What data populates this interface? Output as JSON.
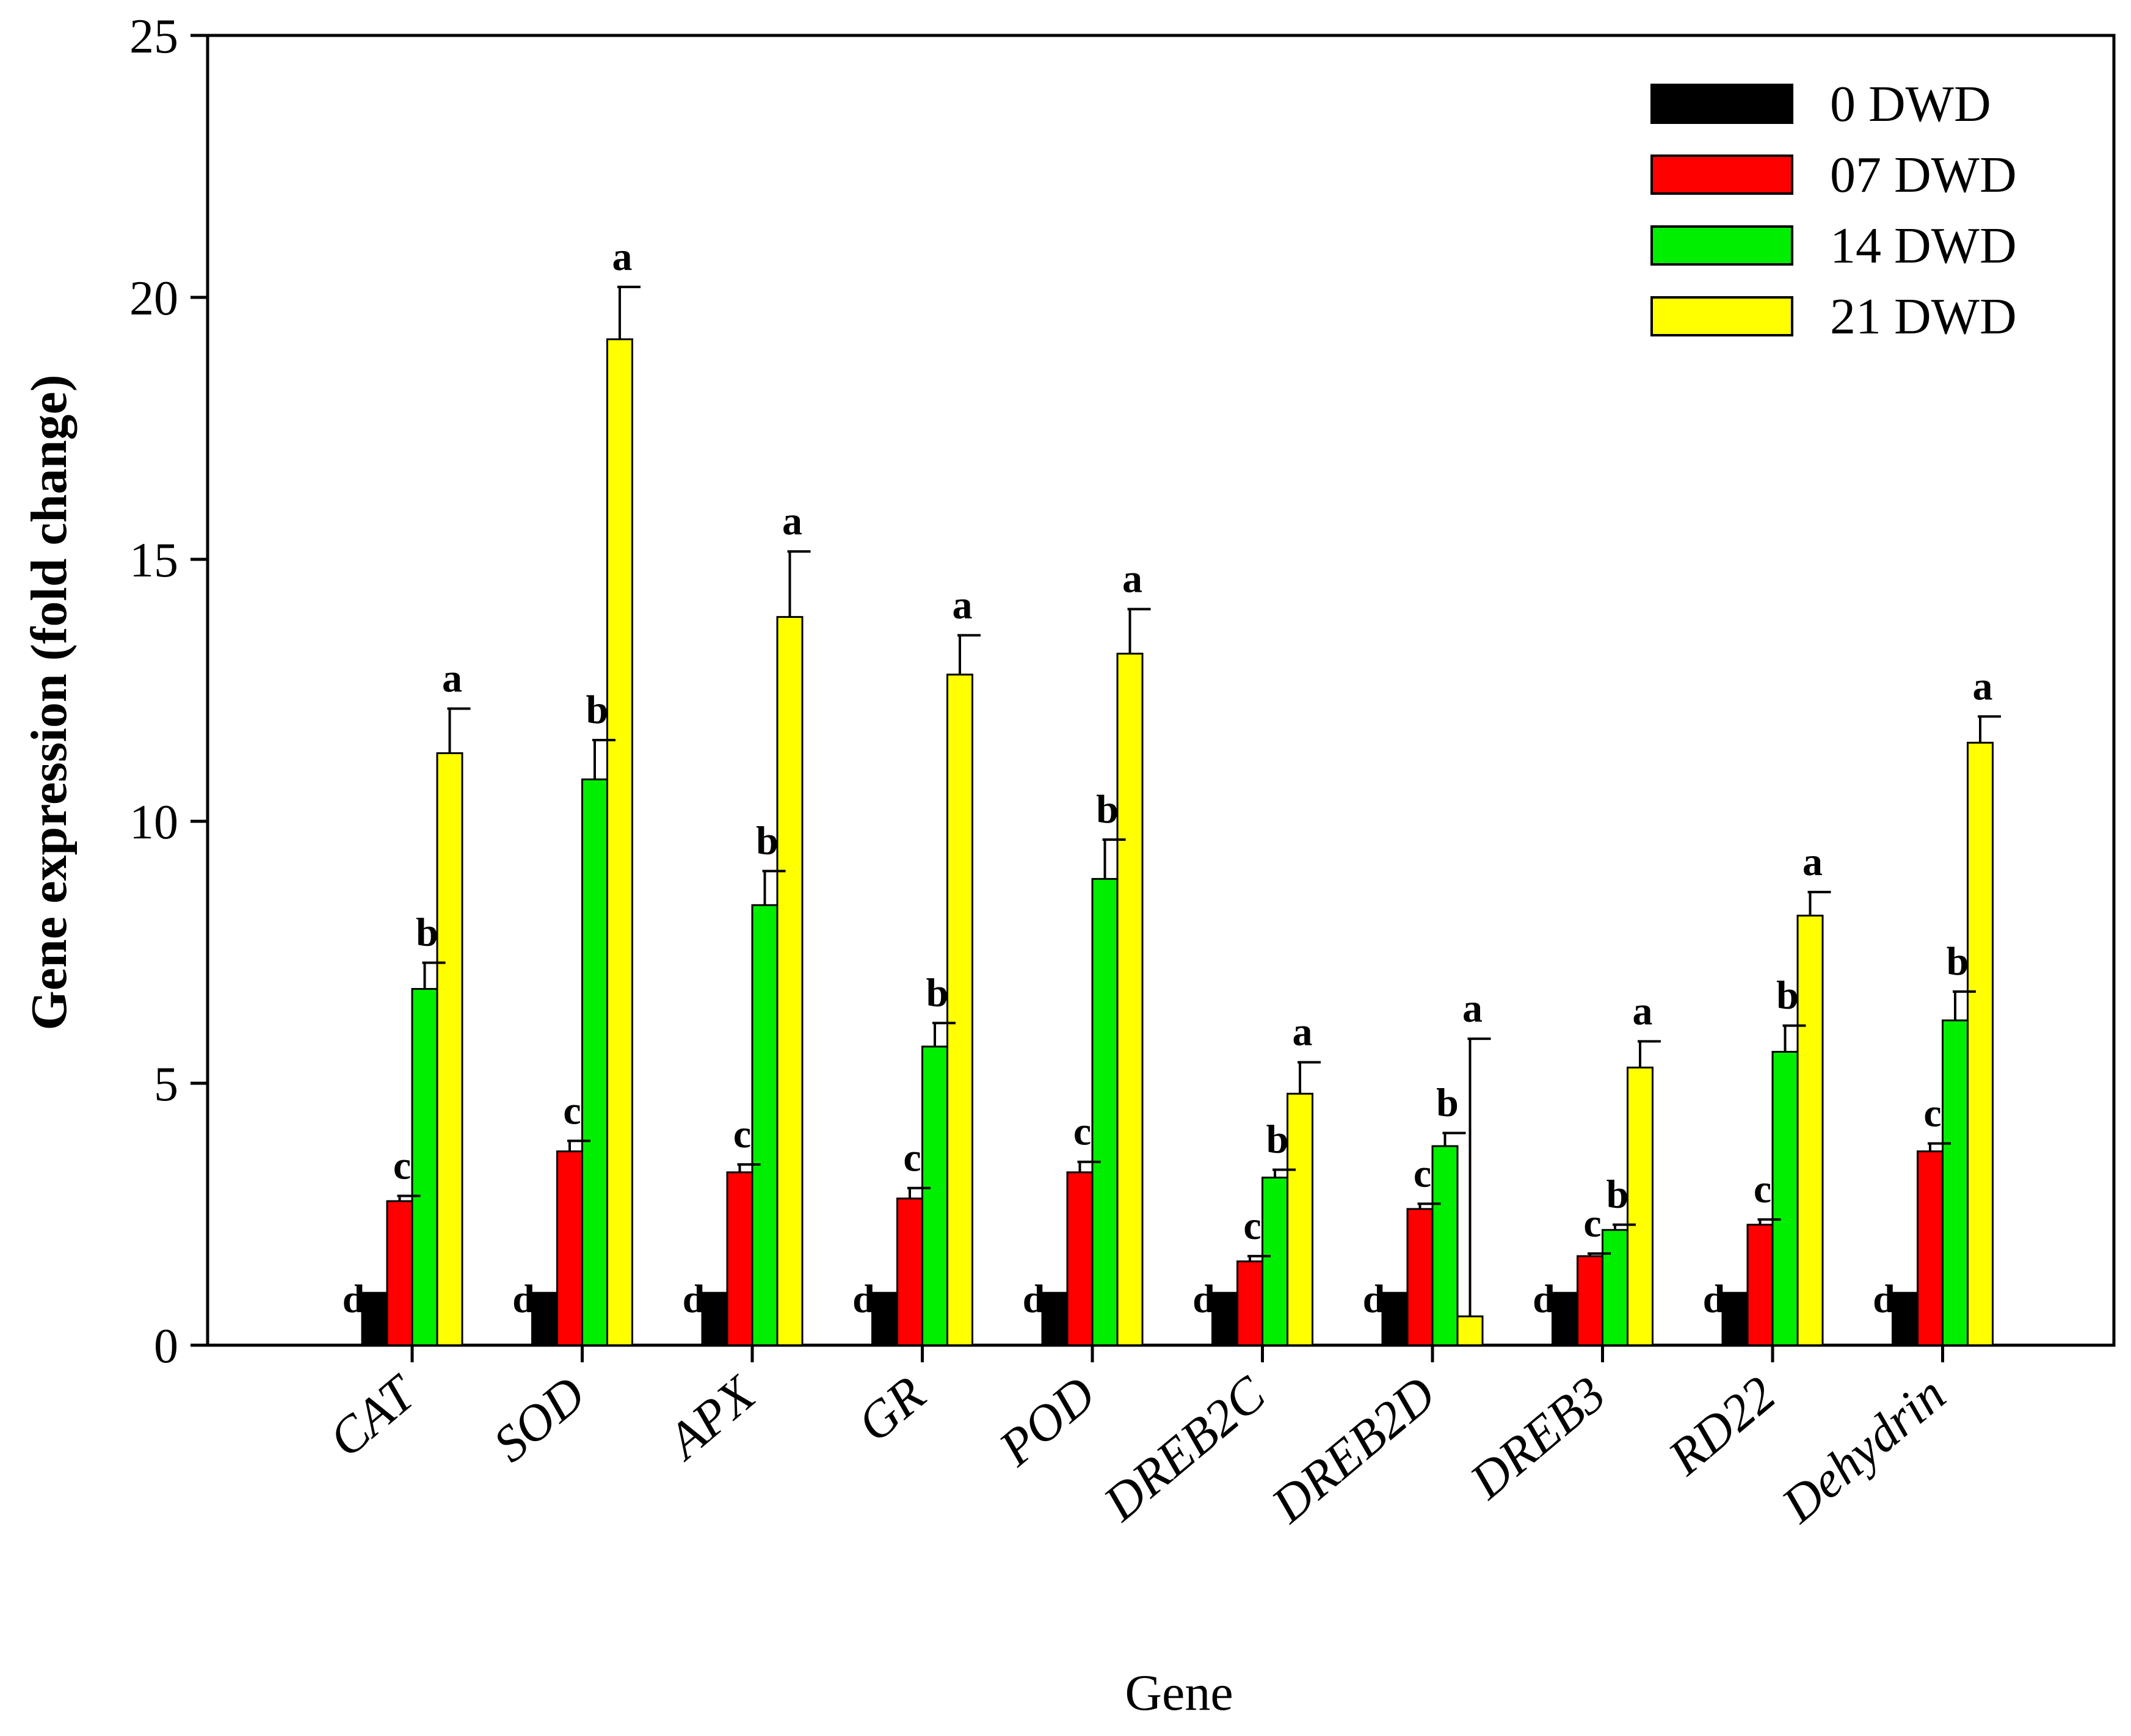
{
  "chart_data": {
    "type": "bar",
    "title": "",
    "xlabel": "Gene",
    "ylabel": "Gene expression (fold change)",
    "ylim": [
      0,
      25
    ],
    "yticks": [
      0,
      5,
      10,
      15,
      20,
      25
    ],
    "ytick_labels": [
      "0",
      "5",
      "10",
      "15",
      "20",
      "25"
    ],
    "grid": false,
    "legend_position": "top-right",
    "categories": [
      "CAT",
      "SOD",
      "APX",
      "GR",
      "POD",
      "DREB2C",
      "DREB2D",
      "DREB3",
      "RD22",
      "Dehydrin"
    ],
    "series": [
      {
        "name": "0 DWD",
        "color": "#000000",
        "values": [
          1,
          1,
          1,
          1,
          1,
          1,
          1,
          1,
          1,
          1
        ],
        "errors": [
          0,
          0,
          0,
          0,
          0,
          0,
          0,
          0,
          0,
          0
        ],
        "letters": [
          "d",
          "d",
          "d",
          "d",
          "d",
          "d",
          "d",
          "d",
          "d",
          "d"
        ]
      },
      {
        "name": "07 DWD",
        "color": "#ff0000",
        "values": [
          2.75,
          3.7,
          3.3,
          2.8,
          3.3,
          1.6,
          2.6,
          1.7,
          2.3,
          3.7
        ],
        "errors": [
          0.1,
          0.2,
          0.15,
          0.2,
          0.2,
          0.1,
          0.1,
          0.05,
          0.1,
          0.15
        ],
        "letters": [
          "c",
          "c",
          "c",
          "c",
          "c",
          "c",
          "c",
          "c",
          "c",
          "c"
        ]
      },
      {
        "name": "14 DWD",
        "color": "#00ee00",
        "values": [
          6.8,
          10.8,
          8.4,
          5.7,
          8.9,
          3.2,
          3.8,
          2.2,
          5.6,
          6.2
        ],
        "errors": [
          0.5,
          0.75,
          0.65,
          0.45,
          0.75,
          0.15,
          0.25,
          0.1,
          0.5,
          0.55
        ],
        "letters": [
          "b",
          "b",
          "b",
          "b",
          "b",
          "b",
          "b",
          "b",
          "b",
          "b"
        ]
      },
      {
        "name": "21 DWD",
        "color": "#ffff00",
        "values": [
          11.3,
          19.2,
          13.9,
          12.8,
          13.2,
          4.8,
          0.55,
          5.3,
          8.2,
          11.5
        ],
        "errors": [
          0.85,
          1.0,
          1.25,
          0.75,
          0.85,
          0.6,
          5.3,
          0.5,
          0.45,
          0.5
        ],
        "letters": [
          "a",
          "a",
          "a",
          "a",
          "a",
          "a",
          "a",
          "a",
          "a",
          "a"
        ]
      }
    ]
  }
}
